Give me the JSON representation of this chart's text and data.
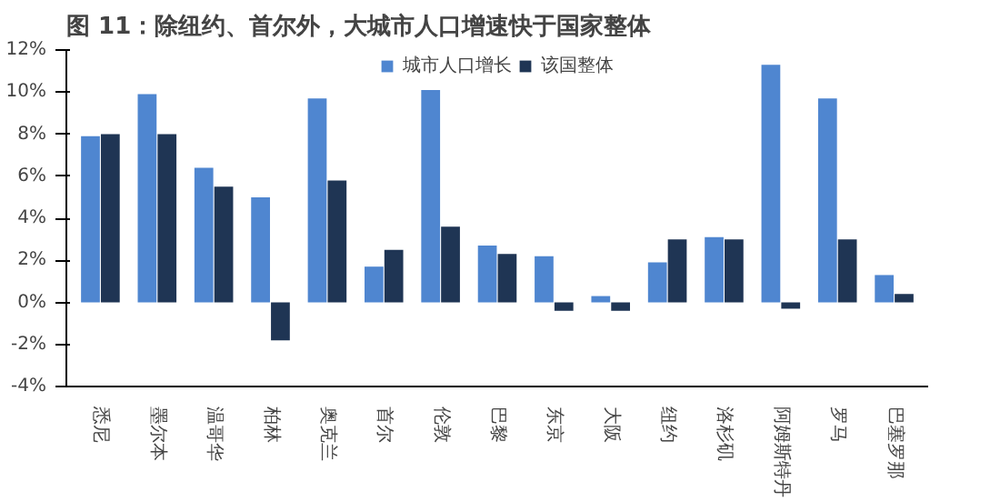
{
  "chart_data": {
    "type": "bar",
    "title": "图 11：除纽约、首尔外，大城市人口增速快于国家整体",
    "categories": [
      "悉尼",
      "墨尔本",
      "温哥华",
      "柏林",
      "奥克兰",
      "首尔",
      "伦敦",
      "巴黎",
      "东京",
      "大阪",
      "纽约",
      "洛杉矶",
      "阿姆斯特丹",
      "罗马",
      "巴塞罗那"
    ],
    "series": [
      {
        "name": "城市人口增长",
        "color": "#4f86d0",
        "values": [
          7.9,
          9.9,
          6.4,
          5.0,
          9.7,
          1.7,
          10.1,
          2.7,
          2.2,
          0.3,
          1.9,
          3.1,
          11.3,
          9.7,
          1.3
        ]
      },
      {
        "name": "该国整体",
        "color": "#1f3554",
        "values": [
          8.0,
          8.0,
          5.5,
          -1.8,
          5.8,
          2.5,
          3.6,
          2.3,
          -0.4,
          -0.4,
          3.0,
          3.0,
          -0.3,
          3.0,
          0.4
        ]
      }
    ],
    "ylim": [
      -4,
      12
    ],
    "yticks": [
      {
        "value": -4,
        "label": "-4%"
      },
      {
        "value": -2,
        "label": "-2%"
      },
      {
        "value": 0,
        "label": "0%"
      },
      {
        "value": 2,
        "label": "2%"
      },
      {
        "value": 4,
        "label": "4%"
      },
      {
        "value": 6,
        "label": "6%"
      },
      {
        "value": 8,
        "label": "8%"
      },
      {
        "value": 10,
        "label": "10%"
      },
      {
        "value": 12,
        "label": "12%"
      }
    ],
    "grid": false,
    "legend": "top"
  }
}
